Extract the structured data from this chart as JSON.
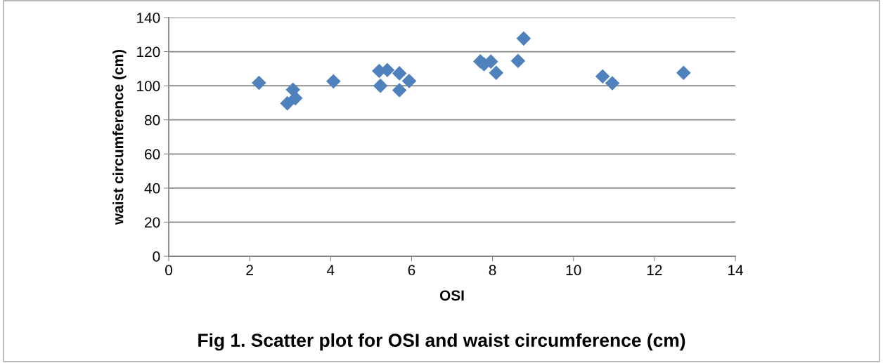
{
  "chart_data": {
    "type": "scatter",
    "title": "Fig 1. Scatter plot for OSI and waist circumference (cm)",
    "xlabel": "OSI",
    "ylabel": "waist circumference (cm)",
    "x": [
      2.23,
      2.93,
      3.07,
      3.13,
      4.07,
      5.2,
      5.23,
      5.4,
      5.7,
      5.7,
      5.94,
      7.7,
      7.79,
      7.96,
      8.09,
      8.63,
      8.77,
      10.72,
      10.96,
      12.72
    ],
    "values": [
      101.7,
      89.7,
      97.7,
      92.7,
      102.6,
      108.7,
      100.0,
      109.2,
      107.3,
      97.4,
      102.8,
      114.3,
      112.6,
      114.2,
      107.6,
      114.6,
      127.7,
      105.5,
      101.5,
      107.6
    ],
    "color": "#4f81bd",
    "marker": "diamond",
    "grid": "y",
    "xlim": [
      0,
      14
    ],
    "xticks": [
      0,
      2,
      4,
      6,
      8,
      10,
      12,
      14
    ],
    "ylim": [
      0,
      140
    ],
    "yticks": [
      0,
      20,
      40,
      60,
      80,
      100,
      120,
      140
    ]
  }
}
